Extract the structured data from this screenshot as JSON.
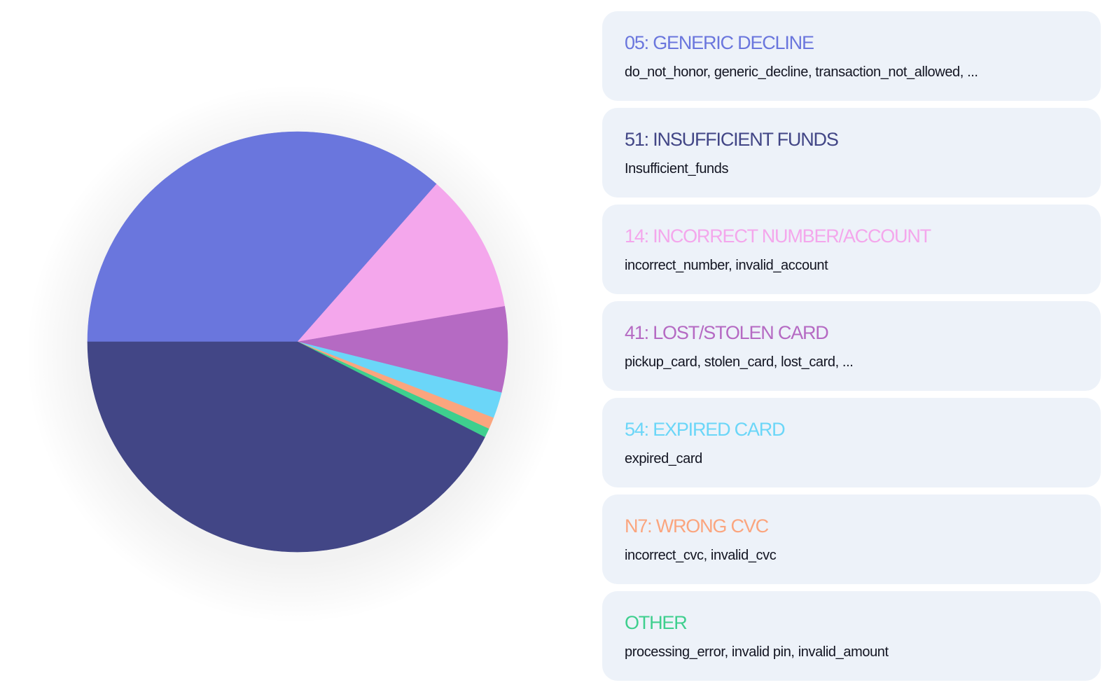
{
  "chart_data": {
    "type": "pie",
    "start_angle_deg": 180,
    "direction": "clockwise",
    "slices": [
      {
        "name": "05: GENERIC DECLINE",
        "value": 36.5,
        "color": "#6a76dd",
        "description": "do_not_honor, generic_decline, transaction_not_allowed, ..."
      },
      {
        "name": "14: INCORRECT NUMBER/ACCOUNT",
        "value": 10.8,
        "color": "#f4a7ec",
        "description": "incorrect_number, invalid_account"
      },
      {
        "name": "41: LOST/STOLEN CARD",
        "value": 6.6,
        "color": "#b56ac3",
        "description": "pickup_card, stolen_card, lost_card, ..."
      },
      {
        "name": "54: EXPIRED CARD",
        "value": 2.0,
        "color": "#6bd6f8",
        "description": "expired_card"
      },
      {
        "name": "N7: WRONG CVC",
        "value": 0.9,
        "color": "#fba57e",
        "description": "incorrect_cvc, invalid_cvc"
      },
      {
        "name": "OTHER",
        "value": 0.7,
        "color": "#3ecf8e",
        "description": "processing_error, invalid pin, invalid_amount"
      },
      {
        "name": "51: INSUFFICIENT FUNDS",
        "value": 42.5,
        "color": "#424686",
        "description": "Insufficient_funds"
      }
    ],
    "legend_order": [
      "05: GENERIC DECLINE",
      "51: INSUFFICIENT FUNDS",
      "14: INCORRECT NUMBER/ACCOUNT",
      "41: LOST/STOLEN CARD",
      "54: EXPIRED CARD",
      "N7: WRONG CVC",
      "OTHER"
    ],
    "legend_placement": "right"
  },
  "legend": [
    {
      "title": "05: GENERIC DECLINE",
      "description": "do_not_honor, generic_decline, transaction_not_allowed, ...",
      "color": "#6a76dd"
    },
    {
      "title": "51: INSUFFICIENT FUNDS",
      "description": "Insufficient_funds",
      "color": "#424686"
    },
    {
      "title": "14: INCORRECT NUMBER/ACCOUNT",
      "description": "incorrect_number, invalid_account",
      "color": "#f4a7ec"
    },
    {
      "title": "41: LOST/STOLEN CARD",
      "description": "pickup_card, stolen_card, lost_card, ...",
      "color": "#b56ac3"
    },
    {
      "title": "54: EXPIRED CARD",
      "description": "expired_card",
      "color": "#6bd6f8"
    },
    {
      "title": "N7: WRONG CVC",
      "description": "incorrect_cvc, invalid_cvc",
      "color": "#fba57e"
    },
    {
      "title": "OTHER",
      "description": "processing_error, invalid pin, invalid_amount",
      "color": "#3ecf8e"
    }
  ]
}
